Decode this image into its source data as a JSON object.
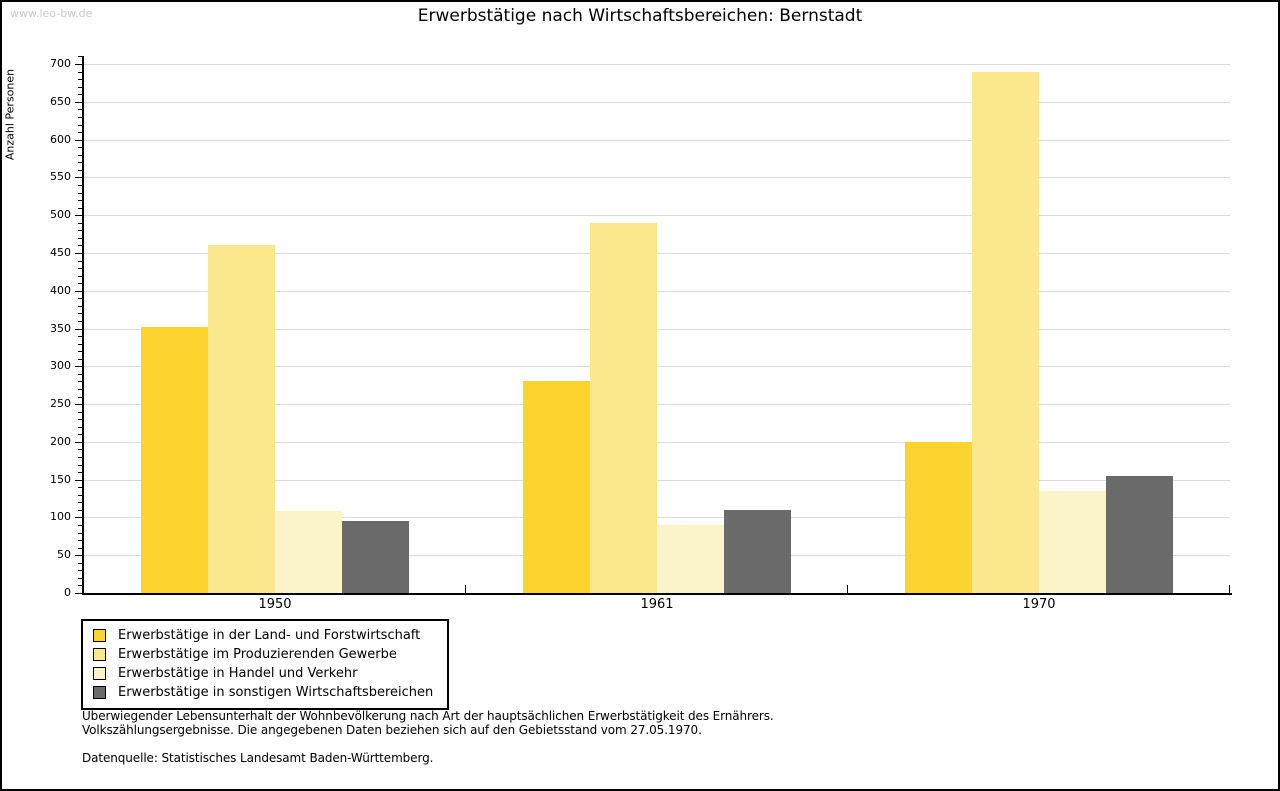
{
  "page": {
    "watermark": "www.leo-bw.de",
    "title": "Erwerbstätige nach Wirtschaftsbereichen: Bernstadt"
  },
  "chart_data": {
    "type": "bar",
    "title": "Erwerbstätige nach Wirtschaftsbereichen: Bernstadt",
    "xlabel": "",
    "ylabel": "Anzahl Personen",
    "ylim": [
      0,
      700
    ],
    "ytick_major_step": 50,
    "ytick_minor_step": 10,
    "grid": true,
    "legend_position": "bottom-left",
    "categories": [
      "1950",
      "1961",
      "1970"
    ],
    "series": [
      {
        "name": "Erwerbstätige in der Land- und Forstwirtschaft",
        "color": "#FCD32F",
        "values": [
          352,
          280,
          200
        ]
      },
      {
        "name": "Erwerbstätige im Produzierenden Gewerbe",
        "color": "#FBE88C",
        "values": [
          460,
          490,
          690
        ]
      },
      {
        "name": "Erwerbstätige in Handel und Verkehr",
        "color": "#FCF4C9",
        "values": [
          108,
          90,
          135
        ]
      },
      {
        "name": "Erwerbstätige in sonstigen Wirtschaftsbereichen",
        "color": "#6A6A6A",
        "values": [
          95,
          110,
          155
        ]
      }
    ],
    "colors": {
      "gridline": "#dcdcdc",
      "axis": "#000000",
      "watermark": "#c9c9c9"
    }
  },
  "footnotes": {
    "line1": "Überwiegender Lebensunterhalt der Wohnbevölkerung nach Art der hauptsächlichen Erwerbstätigkeit des Ernährers.",
    "line2": "Volkszählungsergebnisse. Die angegebenen Daten beziehen sich auf den Gebietsstand vom 27.05.1970.",
    "source": "Datenquelle: Statistisches Landesamt Baden-Württemberg."
  }
}
